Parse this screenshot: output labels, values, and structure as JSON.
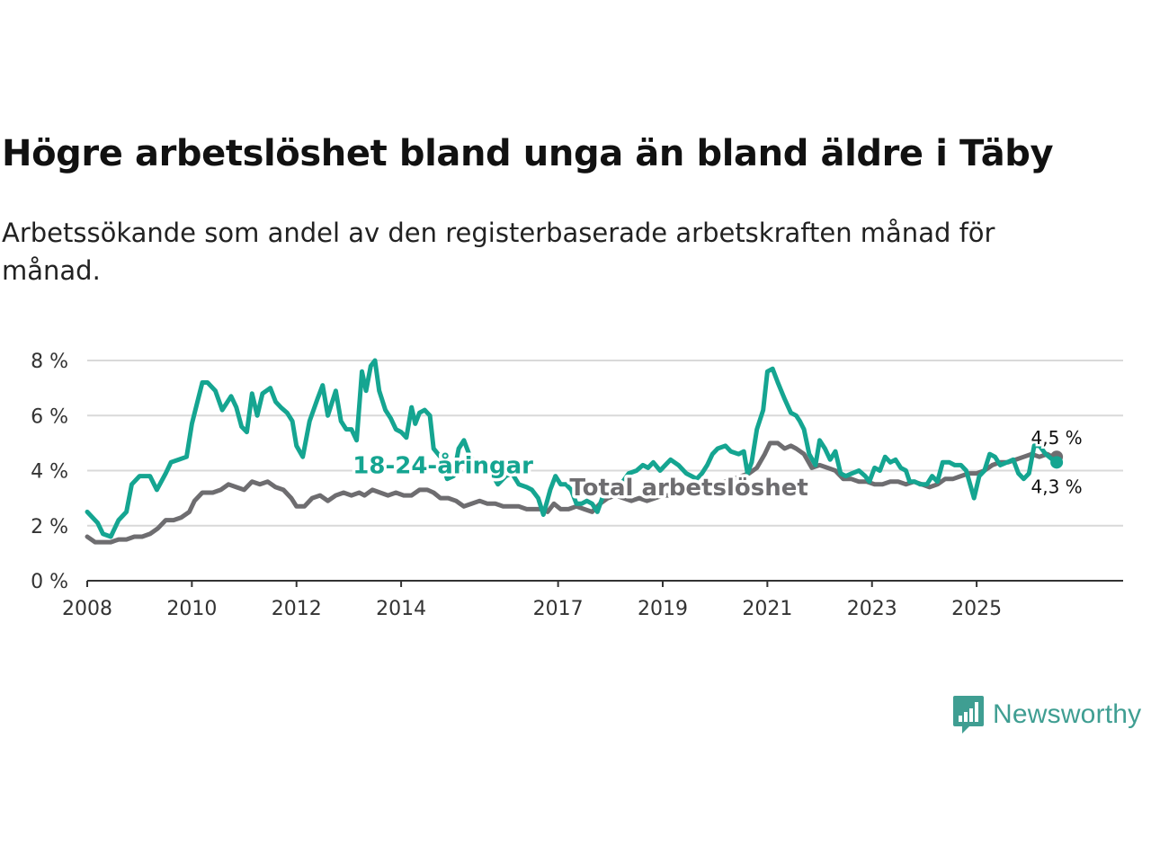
{
  "title": "Högre arbetslöshet bland unga än bland äldre i Täby",
  "subtitle": "Arbetssökande som andel av den registerbaserade arbetskraften månad för månad.",
  "brand": {
    "name": "Newsworthy",
    "color": "#3f9e92"
  },
  "chart_data": {
    "type": "line",
    "title": "Högre arbetslöshet bland unga än bland äldre i Täby",
    "subtitle": "Arbetssökande som andel av den registerbaserade arbetskraften månad för månad.",
    "xlabel": "",
    "ylabel": "",
    "xlim": [
      2008,
      2027.8
    ],
    "ylim": [
      0,
      8
    ],
    "grid": true,
    "x_ticks": [
      2008,
      2010,
      2012,
      2014,
      2017,
      2019,
      2021,
      2023,
      2025
    ],
    "y_ticks": [
      {
        "value": 0,
        "label": "0 %"
      },
      {
        "value": 2,
        "label": "2 %"
      },
      {
        "value": 4,
        "label": "4 %"
      },
      {
        "value": 6,
        "label": "6 %"
      },
      {
        "value": 8,
        "label": "8 %"
      }
    ],
    "series": [
      {
        "name": "18-24-åringar",
        "color": "#15a591",
        "end_label": "4,3 %",
        "points": [
          [
            2008.0,
            2.5
          ],
          [
            2008.2,
            2.1
          ],
          [
            2008.3,
            1.7
          ],
          [
            2008.45,
            1.6
          ],
          [
            2008.6,
            2.2
          ],
          [
            2008.75,
            2.5
          ],
          [
            2008.85,
            3.5
          ],
          [
            2009.0,
            3.8
          ],
          [
            2009.2,
            3.8
          ],
          [
            2009.33,
            3.3
          ],
          [
            2009.5,
            3.9
          ],
          [
            2009.6,
            4.3
          ],
          [
            2009.75,
            4.4
          ],
          [
            2009.9,
            4.5
          ],
          [
            2010.0,
            5.7
          ],
          [
            2010.2,
            7.2
          ],
          [
            2010.3,
            7.2
          ],
          [
            2010.45,
            6.9
          ],
          [
            2010.58,
            6.2
          ],
          [
            2010.75,
            6.7
          ],
          [
            2010.85,
            6.3
          ],
          [
            2010.95,
            5.6
          ],
          [
            2011.05,
            5.4
          ],
          [
            2011.15,
            6.8
          ],
          [
            2011.25,
            6.0
          ],
          [
            2011.35,
            6.8
          ],
          [
            2011.5,
            7.0
          ],
          [
            2011.6,
            6.5
          ],
          [
            2011.7,
            6.3
          ],
          [
            2011.82,
            6.1
          ],
          [
            2011.92,
            5.8
          ],
          [
            2012.0,
            4.9
          ],
          [
            2012.12,
            4.5
          ],
          [
            2012.25,
            5.8
          ],
          [
            2012.4,
            6.6
          ],
          [
            2012.5,
            7.1
          ],
          [
            2012.6,
            6.0
          ],
          [
            2012.75,
            6.9
          ],
          [
            2012.85,
            5.8
          ],
          [
            2012.95,
            5.5
          ],
          [
            2013.05,
            5.5
          ],
          [
            2013.15,
            5.1
          ],
          [
            2013.25,
            7.6
          ],
          [
            2013.33,
            6.9
          ],
          [
            2013.42,
            7.8
          ],
          [
            2013.5,
            8.0
          ],
          [
            2013.58,
            6.9
          ],
          [
            2013.7,
            6.2
          ],
          [
            2013.8,
            5.9
          ],
          [
            2013.9,
            5.5
          ],
          [
            2014.0,
            5.4
          ],
          [
            2014.1,
            5.2
          ],
          [
            2014.2,
            6.3
          ],
          [
            2014.27,
            5.7
          ],
          [
            2014.35,
            6.1
          ],
          [
            2014.45,
            6.2
          ],
          [
            2014.55,
            6.0
          ],
          [
            2014.62,
            4.8
          ],
          [
            2014.75,
            4.5
          ],
          [
            2014.88,
            3.7
          ],
          [
            2015.0,
            3.8
          ],
          [
            2015.1,
            4.8
          ],
          [
            2015.2,
            5.1
          ],
          [
            2015.3,
            4.6
          ],
          [
            2015.4,
            4.3
          ],
          [
            2015.55,
            4.2
          ],
          [
            2015.7,
            4.0
          ],
          [
            2015.85,
            3.5
          ],
          [
            2016.0,
            3.8
          ],
          [
            2016.12,
            3.9
          ],
          [
            2016.25,
            3.5
          ],
          [
            2016.4,
            3.4
          ],
          [
            2016.5,
            3.3
          ],
          [
            2016.62,
            3.0
          ],
          [
            2016.72,
            2.4
          ],
          [
            2016.85,
            3.3
          ],
          [
            2016.95,
            3.8
          ],
          [
            2017.05,
            3.5
          ],
          [
            2017.15,
            3.5
          ],
          [
            2017.25,
            3.3
          ],
          [
            2017.35,
            2.8
          ],
          [
            2017.45,
            2.8
          ],
          [
            2017.55,
            2.9
          ],
          [
            2017.65,
            2.8
          ],
          [
            2017.75,
            2.5
          ],
          [
            2017.9,
            3.3
          ],
          [
            2018.0,
            3.4
          ],
          [
            2018.1,
            3.3
          ],
          [
            2018.2,
            3.5
          ],
          [
            2018.35,
            3.9
          ],
          [
            2018.5,
            4.0
          ],
          [
            2018.62,
            4.2
          ],
          [
            2018.72,
            4.1
          ],
          [
            2018.82,
            4.3
          ],
          [
            2018.95,
            4.0
          ],
          [
            2019.05,
            4.2
          ],
          [
            2019.15,
            4.4
          ],
          [
            2019.3,
            4.2
          ],
          [
            2019.45,
            3.9
          ],
          [
            2019.55,
            3.8
          ],
          [
            2019.65,
            3.7
          ],
          [
            2019.75,
            3.9
          ],
          [
            2019.85,
            4.2
          ],
          [
            2019.95,
            4.6
          ],
          [
            2020.05,
            4.8
          ],
          [
            2020.2,
            4.9
          ],
          [
            2020.3,
            4.7
          ],
          [
            2020.45,
            4.6
          ],
          [
            2020.55,
            4.7
          ],
          [
            2020.62,
            3.9
          ],
          [
            2020.7,
            4.3
          ],
          [
            2020.8,
            5.5
          ],
          [
            2020.92,
            6.2
          ],
          [
            2021.0,
            7.6
          ],
          [
            2021.1,
            7.7
          ],
          [
            2021.2,
            7.2
          ],
          [
            2021.33,
            6.6
          ],
          [
            2021.45,
            6.1
          ],
          [
            2021.55,
            6.0
          ],
          [
            2021.62,
            5.8
          ],
          [
            2021.7,
            5.5
          ],
          [
            2021.8,
            4.6
          ],
          [
            2021.92,
            4.2
          ],
          [
            2022.0,
            5.1
          ],
          [
            2022.1,
            4.8
          ],
          [
            2022.2,
            4.4
          ],
          [
            2022.3,
            4.7
          ],
          [
            2022.4,
            3.9
          ],
          [
            2022.5,
            3.8
          ],
          [
            2022.62,
            3.9
          ],
          [
            2022.75,
            4.0
          ],
          [
            2022.87,
            3.8
          ],
          [
            2022.95,
            3.6
          ],
          [
            2023.05,
            4.1
          ],
          [
            2023.15,
            4.0
          ],
          [
            2023.25,
            4.5
          ],
          [
            2023.35,
            4.3
          ],
          [
            2023.45,
            4.4
          ],
          [
            2023.55,
            4.1
          ],
          [
            2023.65,
            4.0
          ],
          [
            2023.72,
            3.6
          ],
          [
            2023.82,
            3.6
          ],
          [
            2023.92,
            3.5
          ],
          [
            2024.05,
            3.5
          ],
          [
            2024.15,
            3.8
          ],
          [
            2024.25,
            3.6
          ],
          [
            2024.35,
            4.3
          ],
          [
            2024.48,
            4.3
          ],
          [
            2024.58,
            4.2
          ],
          [
            2024.7,
            4.2
          ],
          [
            2024.8,
            4.0
          ],
          [
            2024.95,
            3.0
          ],
          [
            2025.05,
            3.8
          ],
          [
            2025.15,
            4.0
          ],
          [
            2025.25,
            4.6
          ],
          [
            2025.35,
            4.5
          ],
          [
            2025.45,
            4.2
          ],
          [
            2025.58,
            4.3
          ],
          [
            2025.7,
            4.4
          ],
          [
            2025.8,
            3.9
          ],
          [
            2025.9,
            3.7
          ],
          [
            2026.0,
            3.9
          ],
          [
            2026.1,
            4.9
          ],
          [
            2026.2,
            4.9
          ],
          [
            2026.32,
            4.6
          ],
          [
            2026.45,
            4.4
          ],
          [
            2026.53,
            4.3
          ]
        ]
      },
      {
        "name": "Total arbetslöshet",
        "color": "#6e6d70",
        "end_label": "4,5 %",
        "points": [
          [
            2008.0,
            1.6
          ],
          [
            2008.15,
            1.4
          ],
          [
            2008.3,
            1.4
          ],
          [
            2008.45,
            1.4
          ],
          [
            2008.6,
            1.5
          ],
          [
            2008.75,
            1.5
          ],
          [
            2008.9,
            1.6
          ],
          [
            2009.05,
            1.6
          ],
          [
            2009.2,
            1.7
          ],
          [
            2009.35,
            1.9
          ],
          [
            2009.5,
            2.2
          ],
          [
            2009.65,
            2.2
          ],
          [
            2009.8,
            2.3
          ],
          [
            2009.95,
            2.5
          ],
          [
            2010.05,
            2.9
          ],
          [
            2010.2,
            3.2
          ],
          [
            2010.4,
            3.2
          ],
          [
            2010.55,
            3.3
          ],
          [
            2010.7,
            3.5
          ],
          [
            2010.85,
            3.4
          ],
          [
            2011.0,
            3.3
          ],
          [
            2011.15,
            3.6
          ],
          [
            2011.3,
            3.5
          ],
          [
            2011.45,
            3.6
          ],
          [
            2011.6,
            3.4
          ],
          [
            2011.75,
            3.3
          ],
          [
            2011.9,
            3.0
          ],
          [
            2012.0,
            2.7
          ],
          [
            2012.15,
            2.7
          ],
          [
            2012.3,
            3.0
          ],
          [
            2012.45,
            3.1
          ],
          [
            2012.6,
            2.9
          ],
          [
            2012.75,
            3.1
          ],
          [
            2012.9,
            3.2
          ],
          [
            2013.05,
            3.1
          ],
          [
            2013.2,
            3.2
          ],
          [
            2013.3,
            3.1
          ],
          [
            2013.45,
            3.3
          ],
          [
            2013.6,
            3.2
          ],
          [
            2013.75,
            3.1
          ],
          [
            2013.9,
            3.2
          ],
          [
            2014.05,
            3.1
          ],
          [
            2014.2,
            3.1
          ],
          [
            2014.35,
            3.3
          ],
          [
            2014.5,
            3.3
          ],
          [
            2014.62,
            3.2
          ],
          [
            2014.75,
            3.0
          ],
          [
            2014.9,
            3.0
          ],
          [
            2015.05,
            2.9
          ],
          [
            2015.2,
            2.7
          ],
          [
            2015.35,
            2.8
          ],
          [
            2015.5,
            2.9
          ],
          [
            2015.65,
            2.8
          ],
          [
            2015.8,
            2.8
          ],
          [
            2015.95,
            2.7
          ],
          [
            2016.1,
            2.7
          ],
          [
            2016.25,
            2.7
          ],
          [
            2016.4,
            2.6
          ],
          [
            2016.55,
            2.6
          ],
          [
            2016.7,
            2.6
          ],
          [
            2016.8,
            2.5
          ],
          [
            2016.92,
            2.8
          ],
          [
            2017.05,
            2.6
          ],
          [
            2017.2,
            2.6
          ],
          [
            2017.35,
            2.7
          ],
          [
            2017.5,
            2.6
          ],
          [
            2017.65,
            2.5
          ],
          [
            2017.8,
            2.8
          ],
          [
            2017.95,
            3.0
          ],
          [
            2018.1,
            3.1
          ],
          [
            2018.25,
            3.0
          ],
          [
            2018.4,
            2.9
          ],
          [
            2018.55,
            3.0
          ],
          [
            2018.7,
            2.9
          ],
          [
            2018.85,
            3.0
          ],
          [
            2019.0,
            3.1
          ],
          [
            2019.15,
            3.1
          ],
          [
            2019.3,
            3.2
          ],
          [
            2019.45,
            3.3
          ],
          [
            2019.6,
            3.3
          ],
          [
            2019.75,
            3.4
          ],
          [
            2019.9,
            3.4
          ],
          [
            2020.05,
            3.5
          ],
          [
            2020.2,
            3.6
          ],
          [
            2020.35,
            3.7
          ],
          [
            2020.5,
            3.8
          ],
          [
            2020.65,
            3.9
          ],
          [
            2020.8,
            4.1
          ],
          [
            2020.95,
            4.6
          ],
          [
            2021.05,
            5.0
          ],
          [
            2021.2,
            5.0
          ],
          [
            2021.33,
            4.8
          ],
          [
            2021.45,
            4.9
          ],
          [
            2021.55,
            4.8
          ],
          [
            2021.7,
            4.6
          ],
          [
            2021.85,
            4.1
          ],
          [
            2022.0,
            4.2
          ],
          [
            2022.15,
            4.1
          ],
          [
            2022.3,
            4.0
          ],
          [
            2022.45,
            3.7
          ],
          [
            2022.6,
            3.7
          ],
          [
            2022.75,
            3.6
          ],
          [
            2022.9,
            3.6
          ],
          [
            2023.05,
            3.5
          ],
          [
            2023.2,
            3.5
          ],
          [
            2023.35,
            3.6
          ],
          [
            2023.5,
            3.6
          ],
          [
            2023.65,
            3.5
          ],
          [
            2023.8,
            3.6
          ],
          [
            2023.95,
            3.5
          ],
          [
            2024.1,
            3.4
          ],
          [
            2024.25,
            3.5
          ],
          [
            2024.4,
            3.7
          ],
          [
            2024.55,
            3.7
          ],
          [
            2024.7,
            3.8
          ],
          [
            2024.85,
            3.9
          ],
          [
            2025.0,
            3.9
          ],
          [
            2025.15,
            4.0
          ],
          [
            2025.3,
            4.2
          ],
          [
            2025.45,
            4.3
          ],
          [
            2025.6,
            4.3
          ],
          [
            2025.75,
            4.4
          ],
          [
            2025.9,
            4.5
          ],
          [
            2026.05,
            4.6
          ],
          [
            2026.2,
            4.5
          ],
          [
            2026.35,
            4.6
          ],
          [
            2026.45,
            4.5
          ],
          [
            2026.53,
            4.5
          ]
        ]
      }
    ],
    "annotations": [
      {
        "text": "18-24-åringar",
        "series": "18-24-åringar",
        "x": 2014.8,
        "y": 4.2
      },
      {
        "text": "Total arbetslöshet",
        "series": "Total arbetslöshet",
        "x": 2019.5,
        "y": 3.4
      }
    ]
  }
}
